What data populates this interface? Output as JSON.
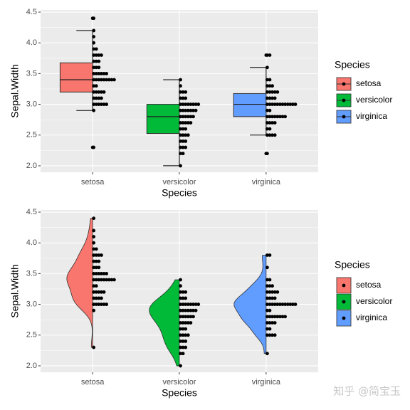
{
  "chart_data": [
    {
      "type": "boxplot_dotplot",
      "x_label": "Species",
      "y_label": "Sepal.Width",
      "legend_title": "Species",
      "categories": [
        "setosa",
        "versicolor",
        "virginica"
      ],
      "ylim": [
        1.895,
        4.535
      ],
      "yticks": [
        {
          "value": 2,
          "label": "2.0"
        },
        2.5,
        {
          "value": 3,
          "label": "3.0"
        },
        3.5,
        {
          "value": 4,
          "label": "4.0"
        },
        4.5
      ],
      "grid": true,
      "series": [
        {
          "name": "setosa",
          "color": "#F8766D",
          "box": {
            "lower_whisker": 2.9,
            "q1": 3.2,
            "median": 3.4,
            "q3": 3.675,
            "upper_whisker": 4.2,
            "outliers": [
              2.3,
              4.4
            ]
          },
          "dot_values": [
            2.3,
            2.9,
            3.0,
            3.1,
            3.2,
            3.3,
            3.4,
            3.5,
            3.6,
            3.7,
            3.8,
            3.9,
            4.0,
            4.1,
            4.2,
            4.4
          ],
          "dot_counts": [
            1,
            1,
            6,
            4,
            5,
            2,
            9,
            6,
            3,
            3,
            4,
            2,
            1,
            1,
            1,
            1
          ]
        },
        {
          "name": "versicolor",
          "color": "#00BA38",
          "box": {
            "lower_whisker": 2.0,
            "q1": 2.525,
            "median": 2.8,
            "q3": 3.0,
            "upper_whisker": 3.4,
            "outliers": []
          },
          "dot_values": [
            2.0,
            2.2,
            2.3,
            2.4,
            2.5,
            2.6,
            2.7,
            2.8,
            2.9,
            3.0,
            3.1,
            3.2,
            3.3,
            3.4
          ],
          "dot_counts": [
            1,
            2,
            3,
            3,
            4,
            3,
            5,
            6,
            7,
            8,
            3,
            3,
            1,
            1
          ]
        },
        {
          "name": "virginica",
          "color": "#619CFF",
          "box": {
            "lower_whisker": 2.5,
            "q1": 2.8,
            "median": 3.0,
            "q3": 3.175,
            "upper_whisker": 3.6,
            "outliers": [
              2.2,
              3.8
            ]
          },
          "dot_values": [
            2.2,
            2.5,
            2.6,
            2.7,
            2.8,
            2.9,
            3.0,
            3.1,
            3.2,
            3.3,
            3.4,
            3.6,
            3.8
          ],
          "dot_counts": [
            1,
            4,
            2,
            4,
            8,
            2,
            12,
            4,
            5,
            3,
            2,
            1,
            2
          ]
        }
      ]
    },
    {
      "type": "violin_dotplot",
      "x_label": "Species",
      "y_label": "Sepal.Width",
      "legend_title": "Species",
      "categories": [
        "setosa",
        "versicolor",
        "virginica"
      ],
      "ylim": [
        1.895,
        4.535
      ],
      "yticks": [
        {
          "value": 2,
          "label": "2.0"
        },
        2.5,
        {
          "value": 3,
          "label": "3.0"
        },
        3.5,
        {
          "value": 4,
          "label": "4.0"
        },
        4.5
      ],
      "grid": true,
      "series": [
        {
          "name": "setosa",
          "color": "#F8766D",
          "dot_values": [
            2.3,
            2.9,
            3.0,
            3.1,
            3.2,
            3.3,
            3.4,
            3.5,
            3.6,
            3.7,
            3.8,
            3.9,
            4.0,
            4.1,
            4.2,
            4.4
          ],
          "dot_counts": [
            1,
            1,
            6,
            4,
            5,
            2,
            9,
            6,
            3,
            3,
            4,
            2,
            1,
            1,
            1,
            1
          ]
        },
        {
          "name": "versicolor",
          "color": "#00BA38",
          "dot_values": [
            2.0,
            2.2,
            2.3,
            2.4,
            2.5,
            2.6,
            2.7,
            2.8,
            2.9,
            3.0,
            3.1,
            3.2,
            3.3,
            3.4
          ],
          "dot_counts": [
            1,
            2,
            3,
            3,
            4,
            3,
            5,
            6,
            7,
            8,
            3,
            3,
            1,
            1
          ]
        },
        {
          "name": "virginica",
          "color": "#619CFF",
          "dot_values": [
            2.2,
            2.5,
            2.6,
            2.7,
            2.8,
            2.9,
            3.0,
            3.1,
            3.2,
            3.3,
            3.4,
            3.6,
            3.8
          ],
          "dot_counts": [
            1,
            4,
            2,
            4,
            8,
            2,
            12,
            4,
            5,
            3,
            2,
            1,
            2
          ]
        }
      ]
    }
  ],
  "watermark": "知乎 @简宝玉"
}
